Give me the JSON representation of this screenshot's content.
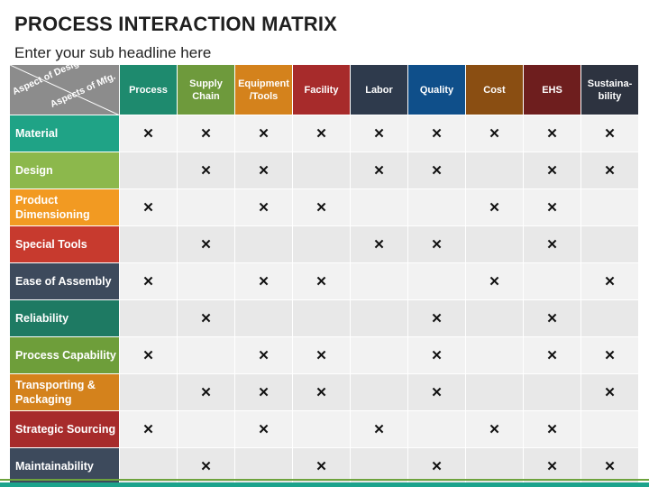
{
  "title": "PROCESS INTERACTION MATRIX",
  "subtitle": "Enter your sub headline here",
  "corner": {
    "row_axis_label": "Aspect of Design",
    "col_axis_label": "Aspects of Mfg."
  },
  "mark_symbol": "✕",
  "columns": [
    {
      "label": "Process",
      "color": "#1e8a6e"
    },
    {
      "label": "Supply Chain",
      "color": "#6e9a3c"
    },
    {
      "label": "Equipment /Tools",
      "color": "#d4821c"
    },
    {
      "label": "Facility",
      "color": "#a72b2b"
    },
    {
      "label": "Labor",
      "color": "#2e3a4c"
    },
    {
      "label": "Quality",
      "color": "#0f4f8a"
    },
    {
      "label": "Cost",
      "color": "#8a4e12"
    },
    {
      "label": "EHS",
      "color": "#6e1e1e"
    },
    {
      "label": "Sustaina- bility",
      "color": "#2d3340"
    }
  ],
  "rows": [
    {
      "label": "Material",
      "color": "#1fa386",
      "marks": [
        1,
        1,
        1,
        1,
        1,
        1,
        1,
        1,
        1
      ]
    },
    {
      "label": "Design",
      "color": "#8cb84c",
      "marks": [
        0,
        1,
        1,
        0,
        1,
        1,
        0,
        1,
        1
      ]
    },
    {
      "label": "Product Dimensioning",
      "color": "#f29a22",
      "marks": [
        1,
        0,
        1,
        1,
        0,
        0,
        1,
        1,
        0
      ]
    },
    {
      "label": "Special Tools",
      "color": "#c73a2e",
      "marks": [
        0,
        1,
        0,
        0,
        1,
        1,
        0,
        1,
        0
      ]
    },
    {
      "label": "Ease of Assembly",
      "color": "#3d4a5c",
      "marks": [
        1,
        0,
        1,
        1,
        0,
        0,
        1,
        0,
        1
      ]
    },
    {
      "label": "Reliability",
      "color": "#1e7a63",
      "marks": [
        0,
        1,
        0,
        0,
        0,
        1,
        0,
        1,
        0
      ]
    },
    {
      "label": "Process Capability",
      "color": "#6e9e3a",
      "marks": [
        1,
        0,
        1,
        1,
        0,
        1,
        0,
        1,
        1
      ]
    },
    {
      "label": "Transporting & Packaging",
      "color": "#d4821c",
      "marks": [
        0,
        1,
        1,
        1,
        0,
        1,
        0,
        0,
        1
      ]
    },
    {
      "label": "Strategic Sourcing",
      "color": "#a72b2b",
      "marks": [
        1,
        0,
        1,
        0,
        1,
        0,
        1,
        1,
        0
      ]
    },
    {
      "label": "Maintainability",
      "color": "#3d4a5c",
      "marks": [
        0,
        1,
        0,
        1,
        0,
        1,
        0,
        1,
        1
      ]
    }
  ]
}
